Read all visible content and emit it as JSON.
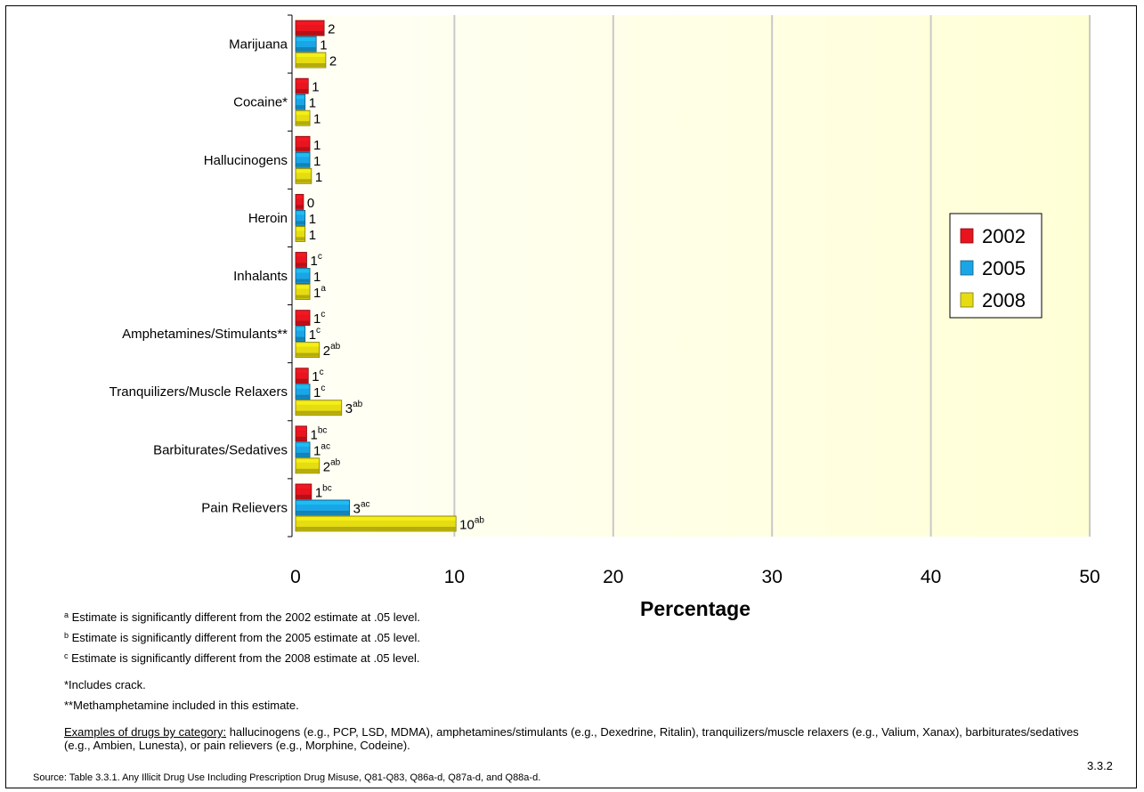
{
  "chart_data": {
    "type": "bar",
    "orientation": "horizontal",
    "categories": [
      "Marijuana",
      "Cocaine*",
      "Hallucinogens",
      "Heroin",
      "Inhalants",
      "Amphetamines/Stimulants**",
      "Tranquilizers/Muscle Relaxers",
      "Barbiturates/Sedatives",
      "Pain Relievers"
    ],
    "series": [
      {
        "name": "2002",
        "color": "#e8141e",
        "values": [
          1.8,
          0.8,
          0.9,
          0.5,
          0.7,
          0.9,
          0.8,
          0.7,
          1.0
        ],
        "labels": [
          "2",
          "1",
          "1",
          "0",
          "1",
          "1",
          "1",
          "1",
          "1"
        ],
        "label_sups": [
          "",
          "",
          "",
          "",
          "c",
          "c",
          "c",
          "bc",
          "bc"
        ]
      },
      {
        "name": "2005",
        "color": "#1aa6e6",
        "values": [
          1.3,
          0.6,
          0.9,
          0.6,
          0.9,
          0.6,
          0.9,
          0.9,
          3.4
        ],
        "labels": [
          "1",
          "1",
          "1",
          "1",
          "1",
          "1",
          "1",
          "1",
          "3"
        ],
        "label_sups": [
          "",
          "",
          "",
          "",
          "",
          "c",
          "c",
          "ac",
          "ac"
        ]
      },
      {
        "name": "2008",
        "color": "#e6dc12",
        "values": [
          1.9,
          0.9,
          1.0,
          0.6,
          0.9,
          1.5,
          2.9,
          1.5,
          10.1
        ],
        "labels": [
          "2",
          "1",
          "1",
          "1",
          "1",
          "2",
          "3",
          "2",
          "10"
        ],
        "label_sups": [
          "",
          "",
          "",
          "",
          "a",
          "ab",
          "ab",
          "ab",
          "ab"
        ]
      }
    ],
    "xlabel": "Percentage",
    "xlim": [
      0,
      50
    ],
    "xticks": [
      "0",
      "10",
      "20",
      "30",
      "40",
      "50"
    ],
    "grid": true,
    "legend_position": "right",
    "plot_background": "#ffffe8"
  },
  "footnotes": [
    {
      "sup": "a",
      "text": "Estimate is significantly different from the 2002 estimate at .05 level."
    },
    {
      "sup": "b",
      "text": "Estimate is significantly different from the 2005 estimate at .05 level."
    },
    {
      "sup": "c",
      "text": "Estimate is significantly different from the 2008 estimate at .05 level."
    }
  ],
  "notes": {
    "crack": "*Includes crack.",
    "meth": "**Methamphetamine included in this estimate.",
    "examples_lead": "Examples of drugs by category:",
    "examples_text": " hallucinogens (e.g., PCP, LSD, MDMA), amphetamines/stimulants (e.g., Dexedrine, Ritalin), tranquilizers/muscle relaxers (e.g., Valium, Xanax), barbiturates/sedatives (e.g., Ambien, Lunesta), or pain relievers (e.g., Morphine, Codeine)."
  },
  "source": "Source: Table 3.3.1. Any Illicit Drug Use Including Prescription Drug Misuse, Q81-Q83, Q86a-d, Q87a-d, and Q88a-d.",
  "page_number": "3.3.2"
}
